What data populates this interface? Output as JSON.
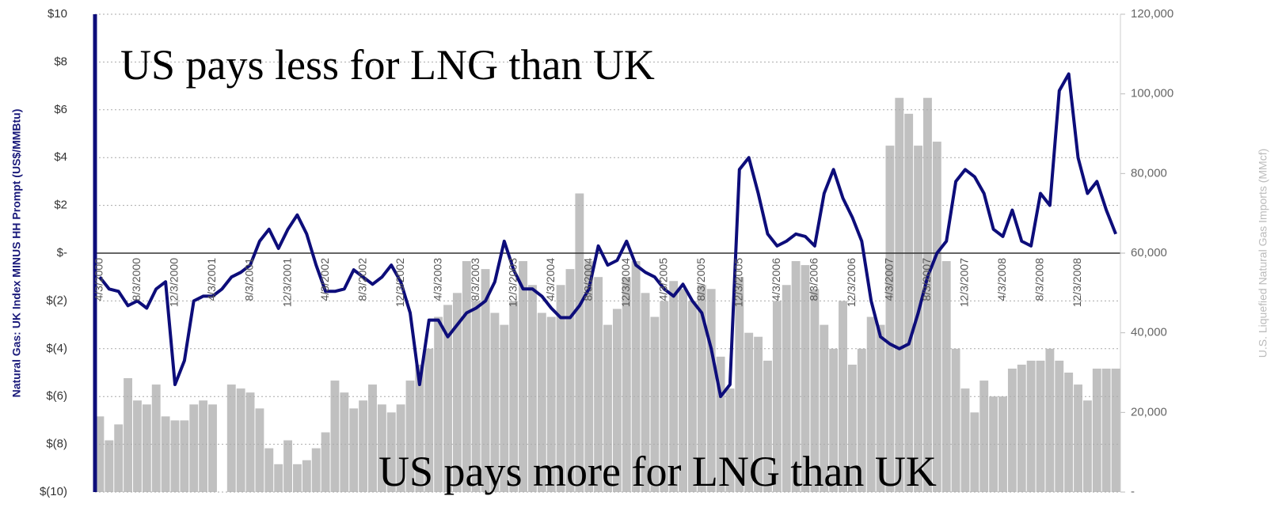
{
  "chart_data": {
    "type": "bar",
    "annotations": [
      "US pays less for LNG than UK",
      "US pays more for LNG than UK"
    ],
    "ylabel": "Natural Gas: UK Index MINUS HH Prompt (US$/MMBtu)",
    "y2label": "U.S. Liquefied Natural Gas Imports (MMcf)",
    "categories": [
      "4/3/2000",
      null,
      null,
      null,
      "8/3/2000",
      null,
      null,
      null,
      "12/3/2000",
      null,
      null,
      null,
      "4/3/2001",
      null,
      null,
      null,
      "8/3/2001",
      null,
      null,
      null,
      "12/3/2001",
      null,
      null,
      null,
      "4/3/2002",
      null,
      null,
      null,
      "8/3/2002",
      null,
      null,
      null,
      "12/3/2002",
      null,
      null,
      null,
      "4/3/2003",
      null,
      null,
      null,
      "8/3/2003",
      null,
      null,
      null,
      "12/3/2003",
      null,
      null,
      null,
      "4/3/2004",
      null,
      null,
      null,
      "8/3/2004",
      null,
      null,
      null,
      "12/3/2004",
      null,
      null,
      null,
      "4/3/2005",
      null,
      null,
      null,
      "8/3/2005",
      null,
      null,
      null,
      "12/3/2005",
      null,
      null,
      null,
      "4/3/2006",
      null,
      null,
      null,
      "8/3/2006",
      null,
      null,
      null,
      "12/3/2006",
      null,
      null,
      null,
      "4/3/2007",
      null,
      null,
      null,
      "8/3/2007",
      null,
      null,
      null,
      "12/3/2007",
      null,
      null,
      null,
      "4/3/2008",
      null,
      null,
      null,
      "8/3/2008",
      null,
      null,
      null,
      "12/3/2008",
      null,
      null,
      null,
      null
    ],
    "series": [
      {
        "type": "bar",
        "axis": "y2",
        "color": "#c0c0c0",
        "values": [
          19000,
          13000,
          17000,
          28600,
          23000,
          22000,
          27000,
          19000,
          18000,
          18000,
          22000,
          23000,
          22000,
          0,
          27000,
          26000,
          25000,
          21000,
          11000,
          7000,
          13000,
          7000,
          8000,
          11000,
          15000,
          28000,
          25000,
          21000,
          23000,
          27000,
          22000,
          20000,
          22000,
          28000,
          32000,
          36000,
          44000,
          47000,
          50000,
          58000,
          48000,
          56000,
          45000,
          42000,
          48000,
          58000,
          52000,
          45000,
          44000,
          52000,
          56000,
          75000,
          58000,
          54000,
          42000,
          46000,
          54000,
          58000,
          50000,
          44000,
          48000,
          53000,
          51000,
          48000,
          52000,
          51000,
          34000,
          26000,
          54000,
          40000,
          39000,
          33000,
          48000,
          52000,
          58000,
          57000,
          51000,
          42000,
          36000,
          48000,
          32000,
          36000,
          44000,
          42000,
          87000,
          99000,
          95000,
          87000,
          99000,
          88000,
          58000,
          36000,
          26000,
          20000,
          28000,
          24000,
          24000,
          31000,
          32000,
          33000,
          33000,
          36000,
          33000,
          30000,
          27000,
          23000,
          31000,
          31000,
          31000
        ]
      },
      {
        "type": "line",
        "color": "#0d0d7a",
        "values": [
          -1,
          -1.5,
          -1.6,
          -2.2,
          -2,
          -2.3,
          -1.5,
          -1.2,
          -5.5,
          -4.5,
          -2,
          -1.8,
          -1.8,
          -1.5,
          -1,
          -0.8,
          -0.5,
          0.5,
          1,
          0.2,
          1,
          1.6,
          0.8,
          -0.5,
          -1.6,
          -1.6,
          -1.5,
          -0.7,
          -1,
          -1.3,
          -1,
          -0.5,
          -1.2,
          -2.5,
          -5.5,
          -2.8,
          -2.8,
          -3.5,
          -3,
          -2.5,
          -2.3,
          -2,
          -1.2,
          0.5,
          -0.7,
          -1.5,
          -1.5,
          -1.8,
          -2.3,
          -2.7,
          -2.7,
          -2.2,
          -1.5,
          0.3,
          -0.5,
          -0.3,
          0.5,
          -0.5,
          -0.8,
          -1,
          -1.5,
          -1.8,
          -1.3,
          -2,
          -2.5,
          -4,
          -6,
          -5.5,
          3.5,
          4,
          2.5,
          0.8,
          0.3,
          0.5,
          0.8,
          0.7,
          0.3,
          2.5,
          3.5,
          2.3,
          1.5,
          0.5,
          -2,
          -3.5,
          -3.8,
          -4,
          -3.8,
          -2.5,
          -1,
          0,
          0.5,
          3,
          3.5,
          3.2,
          2.5,
          1,
          0.7,
          1.8,
          0.5,
          0.3,
          2.5,
          2,
          6.8,
          7.5,
          4,
          2.5,
          3,
          1.8,
          0.8
        ]
      }
    ],
    "ylim": [
      -10,
      10
    ],
    "yticks": [
      {
        "value": -10,
        "label": "$(10)"
      },
      {
        "value": -8,
        "label": "$(8)"
      },
      {
        "value": -6,
        "label": "$(6)"
      },
      {
        "value": -4,
        "label": "$(4)"
      },
      {
        "value": -2,
        "label": "$(2)"
      },
      {
        "value": 0,
        "label": "$-"
      },
      {
        "value": 2,
        "label": "$2"
      },
      {
        "value": 4,
        "label": "$4"
      },
      {
        "value": 6,
        "label": "$6"
      },
      {
        "value": 8,
        "label": "$8"
      },
      {
        "value": 10,
        "label": "$10"
      }
    ],
    "y2lim": [
      0,
      120000
    ],
    "y2ticks": [
      {
        "value": 0,
        "label": "-"
      },
      {
        "value": 20000,
        "label": "20,000"
      },
      {
        "value": 40000,
        "label": "40,000"
      },
      {
        "value": 60000,
        "label": "60,000"
      },
      {
        "value": 80000,
        "label": "80,000"
      },
      {
        "value": 100000,
        "label": "100,000"
      },
      {
        "value": 120000,
        "label": "120,000"
      }
    ],
    "grid": true
  }
}
